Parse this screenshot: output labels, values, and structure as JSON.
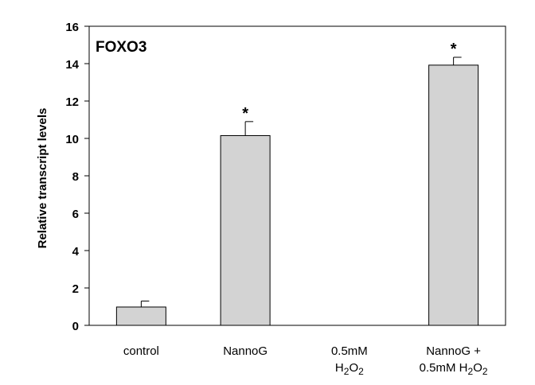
{
  "chart_data": {
    "type": "bar",
    "title": "FOXO3",
    "xlabel": "",
    "ylabel": "Relative transcript levels",
    "ylim": [
      0,
      16
    ],
    "yticks": [
      0,
      2,
      4,
      6,
      8,
      10,
      12,
      14,
      16
    ],
    "grid": false,
    "legend": "none",
    "categories": [
      {
        "lines": [
          [
            {
              "t": "control"
            }
          ]
        ]
      },
      {
        "lines": [
          [
            {
              "t": "NannoG"
            }
          ]
        ]
      },
      {
        "lines": [
          [
            {
              "t": "0.5mM"
            }
          ],
          [
            {
              "t": "H"
            },
            {
              "t": "2",
              "sub": true
            },
            {
              "t": "O"
            },
            {
              "t": "2",
              "sub": true
            }
          ]
        ]
      },
      {
        "lines": [
          [
            {
              "t": "NannoG  +"
            }
          ],
          [
            {
              "t": "0.5mM H"
            },
            {
              "t": "2",
              "sub": true
            },
            {
              "t": "O"
            },
            {
              "t": "2",
              "sub": true
            }
          ]
        ]
      }
    ],
    "values": [
      0.98,
      10.15,
      0,
      13.92
    ],
    "errors": [
      0.32,
      0.75,
      0,
      0.42
    ],
    "significance": [
      "",
      "*",
      "",
      "*"
    ],
    "bar_color": "#d3d3d3",
    "bar_edge_color": "#000000"
  }
}
